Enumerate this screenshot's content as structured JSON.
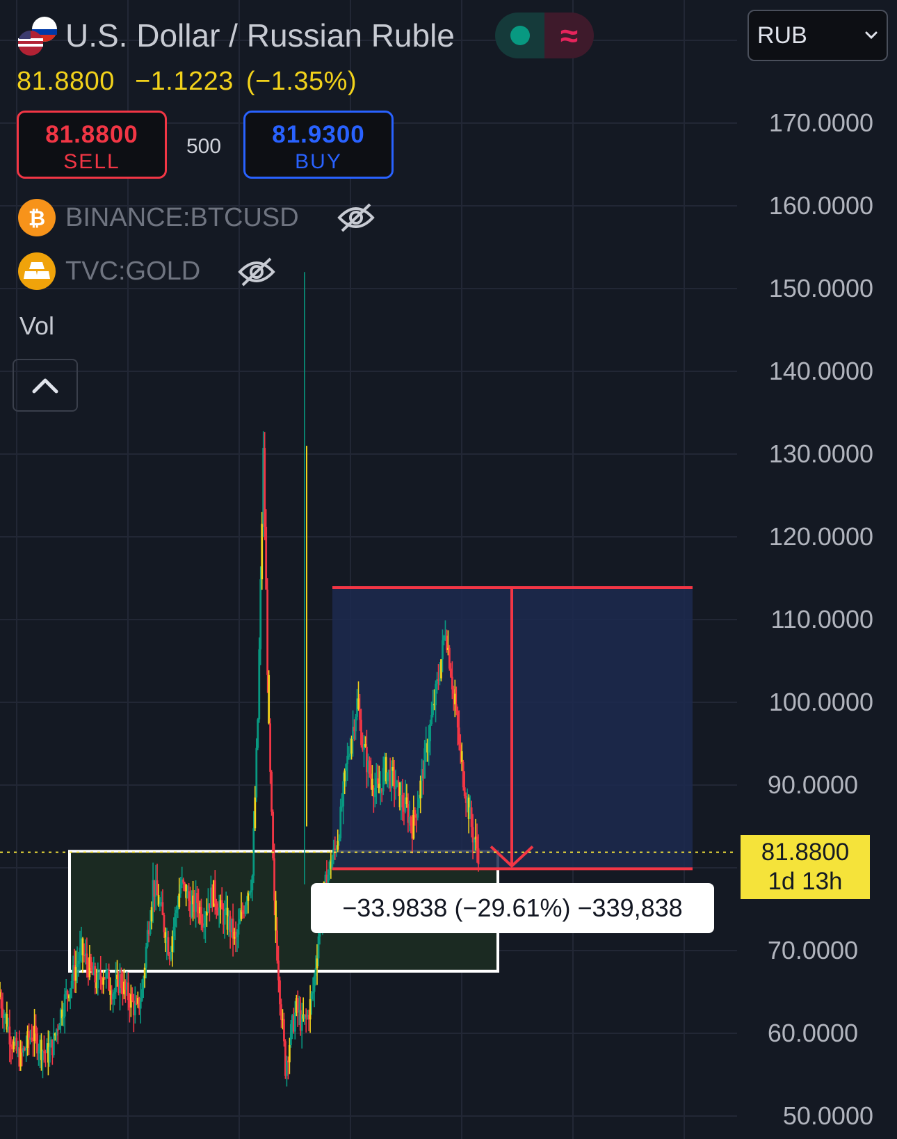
{
  "header": {
    "title": "U.S. Dollar / Russian Ruble",
    "price": "81.8800",
    "change": "−1.1223",
    "change_pct": "(−1.35%)"
  },
  "trade": {
    "sell_price": "81.8800",
    "sell_label": "SELL",
    "quantity": "500",
    "buy_price": "81.9300",
    "buy_label": "BUY"
  },
  "overlays": [
    {
      "symbol": "BINANCE:BTCUSD",
      "icon": "bitcoin-icon",
      "hidden": true
    },
    {
      "symbol": "TVC:GOLD",
      "icon": "gold-bars-icon",
      "hidden": true
    }
  ],
  "volume_label": "Vol",
  "currency_select": "RUB",
  "last_price_tag": {
    "price": "81.8800",
    "countdown": "1d 13h"
  },
  "measure_label": "−33.9838 (−29.61%) −339,838",
  "colors": {
    "background": "#141923",
    "up": "#089981",
    "down": "#f23645",
    "candle_accent": "#f2d21b",
    "measure": "#f23645",
    "measure_fill": "#1c2a4f",
    "support_box": "#ffffff"
  },
  "chart_data": {
    "type": "candlestick",
    "title": "U.S. Dollar / Russian Ruble",
    "xlabel": "",
    "ylabel": "",
    "ylim": [
      48,
      183
    ],
    "y_ticks": [
      "170.0000",
      "160.0000",
      "150.0000",
      "140.0000",
      "130.0000",
      "120.0000",
      "110.0000",
      "100.0000",
      "90.0000",
      "70.0000",
      "60.0000",
      "50.0000"
    ],
    "grid": true,
    "last_price": 81.88,
    "series_close": [
      65.0,
      62.5,
      60.0,
      58.0,
      57.0,
      58.5,
      60.0,
      59.0,
      58.0,
      57.5,
      59.0,
      62.0,
      64.0,
      66.0,
      68.0,
      70.0,
      68.5,
      67.0,
      66.0,
      67.5,
      66.0,
      65.0,
      66.5,
      65.0,
      64.0,
      62.5,
      65.0,
      72.0,
      78.0,
      76.0,
      73.0,
      70.0,
      74.0,
      78.0,
      77.0,
      75.0,
      76.0,
      74.0,
      76.0,
      77.0,
      75.0,
      74.0,
      73.0,
      71.0,
      74.0,
      77.0,
      79.0,
      98.0,
      130.0,
      96.0,
      75.0,
      65.0,
      56.0,
      60.0,
      63.0,
      61.0,
      62.0,
      65.0,
      72.0,
      77.0,
      80.0,
      82.0,
      86.0,
      92.0,
      96.0,
      100.0,
      95.0,
      92.0,
      90.0,
      89.0,
      92.0,
      91.0,
      90.0,
      88.0,
      87.0,
      85.0,
      88.0,
      92.0,
      96.0,
      100.0,
      104.0,
      109.0,
      104.0,
      98.0,
      92.0,
      88.0,
      84.0,
      81.88
    ],
    "annotations": {
      "support_box": {
        "y_top": 82.0,
        "y_bottom": 67.5
      },
      "measure": {
        "y_start": 113.8638,
        "y_end": 79.88,
        "change": -33.9838,
        "change_pct": -29.61,
        "ticks": -339838
      }
    }
  }
}
